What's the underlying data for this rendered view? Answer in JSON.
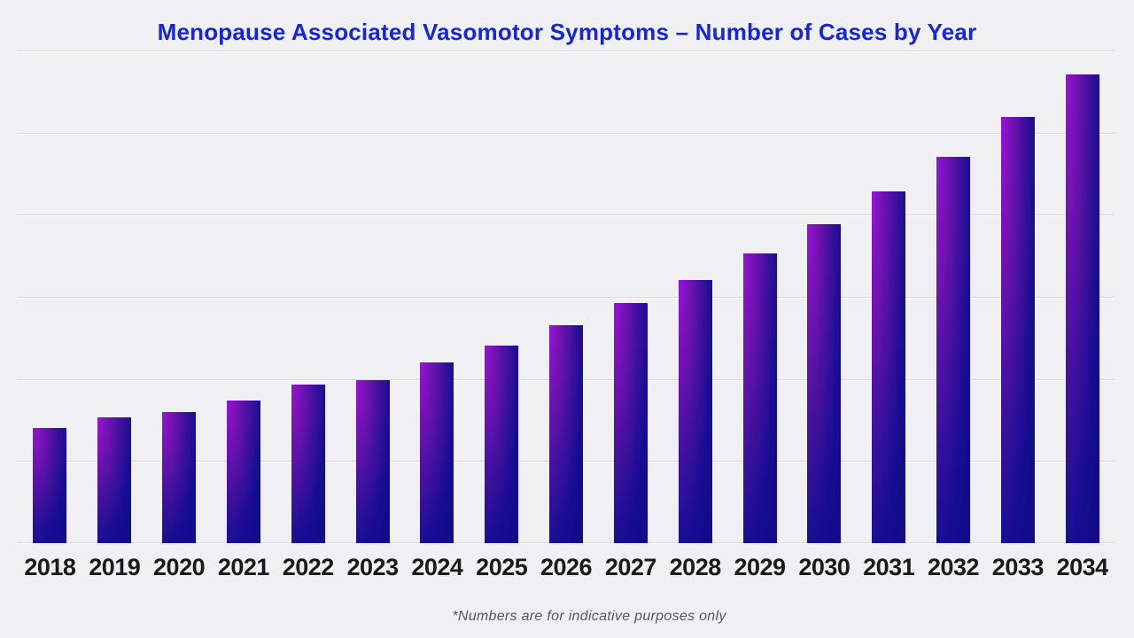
{
  "title": "Menopause Associated Vasomotor Symptoms – Number of Cases by Year",
  "footnote": "*Numbers are for indicative purposes only",
  "colors": {
    "page_background": "#f0f0f2",
    "title_blue": "#1526da",
    "gridline": "#d9d9dc",
    "axis_label": "#1a1a1a",
    "footnote_gray": "#56565a",
    "bar_gradient_stops": [
      "#9414d6",
      "#7612b4",
      "#3a119c",
      "#170d94",
      "#140b8c"
    ]
  },
  "chart_data": {
    "type": "bar",
    "title": "Menopause Associated Vasomotor Symptoms – Number of Cases by Year",
    "categories": [
      "2018",
      "2019",
      "2020",
      "2021",
      "2022",
      "2023",
      "2024",
      "2025",
      "2026",
      "2027",
      "2028",
      "2029",
      "2030",
      "2031",
      "2032",
      "2033",
      "2034"
    ],
    "values": [
      1.4,
      1.53,
      1.6,
      1.74,
      1.93,
      1.99,
      2.2,
      2.41,
      2.66,
      2.92,
      3.2,
      3.53,
      3.89,
      4.28,
      4.71,
      5.19,
      5.71
    ],
    "value_unit": "gridline intervals (y-axis has no numeric labels; heights estimated from gridlines)",
    "xlabel": "",
    "ylabel": "",
    "ylim": [
      0,
      6
    ],
    "gridline_interval": 1,
    "grid": "horizontal only, 7 lines including baseline",
    "y_tick_labels_visible": false,
    "legend": "none",
    "annotation": "*Numbers are for indicative purposes only"
  }
}
